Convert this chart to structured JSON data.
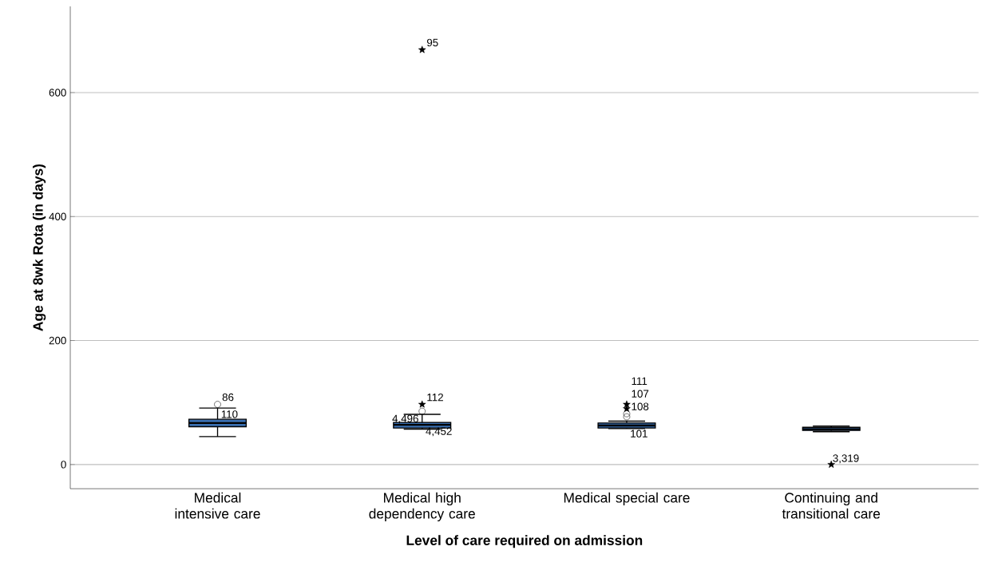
{
  "chart_data": {
    "type": "box",
    "xlabel": "Level of care required on admission",
    "ylabel": "Age at 8wk Rota (in days)",
    "categories": [
      "Medical intensive care",
      "Medical high dependency care",
      "Medical special care",
      "Continuing and transitional care"
    ],
    "color": "#3a6fb0",
    "marker": "circle",
    "boxes": [
      {
        "low": 45,
        "q1": 61,
        "median": 67,
        "q3": 73,
        "high": 91,
        "outliers": [
          97
        ]
      },
      {
        "low": 57,
        "q1": 59,
        "median": 64,
        "q3": 68,
        "high": 81,
        "outliers": [
          86
        ]
      },
      {
        "low": 58,
        "q1": 59,
        "median": 63,
        "q3": 67,
        "high": 70,
        "outliers": [
          77,
          82
        ]
      },
      {
        "low": 53,
        "q1": 55,
        "median": 57,
        "q3": 60,
        "high": 62
      }
    ],
    "series": [
      {
        "type": "scatter",
        "marker": "star",
        "color": "#000000",
        "x": [
          "Medical high dependency care",
          "Medical high dependency care",
          "Medical special care",
          "Medical special care",
          "Continuing and transitional care"
        ],
        "values": [
          97,
          669,
          90,
          97,
          0
        ]
      }
    ],
    "ylim": [
      -39,
      739
    ],
    "yticks": [
      0,
      200,
      400,
      600
    ],
    "grid": "y",
    "annotations": [
      {
        "text": "86",
        "x": "Medical intensive care",
        "y": 97
      },
      {
        "text": "110",
        "x": "Medical intensive care",
        "y": 73
      },
      {
        "text": "112",
        "x": "Medical high dependency care",
        "y": 97
      },
      {
        "text": "95",
        "x": "Medical high dependency care",
        "y": 669
      },
      {
        "text": "4,452",
        "x": "Medical high dependency care",
        "y": 62
      },
      {
        "text": "4,496",
        "x": "Medical high dependency care",
        "y": 64
      },
      {
        "text": "111",
        "x": "Medical special care",
        "y": 97
      },
      {
        "text": "107",
        "x": "Medical special care",
        "y": 90
      },
      {
        "text": "108",
        "x": "Medical special care",
        "y": 82
      },
      {
        "text": "101",
        "x": "Medical special care",
        "y": 58
      },
      {
        "text": "3,319",
        "x": "Continuing and transitional care",
        "y": 0
      }
    ]
  }
}
